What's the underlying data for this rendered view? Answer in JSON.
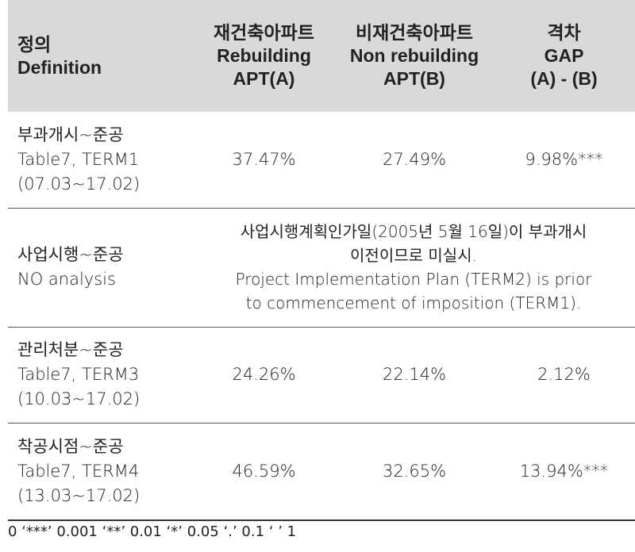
{
  "header": {
    "definition": [
      "정의",
      "Definition"
    ],
    "col_a": [
      "재건축아파트",
      "Rebuilding",
      "APT(A)"
    ],
    "col_b": [
      "비재건축아파트",
      "Non rebuilding",
      "APT(B)"
    ],
    "col_gap": [
      "격차",
      "GAP",
      "(A) - (B)"
    ]
  },
  "rows": [
    {
      "definition": [
        "부과개시~준공",
        "Table7, TERM1",
        "(07.03~17.02)"
      ],
      "a": "37.47%",
      "b": "27.49%",
      "gap": "9.98%***"
    },
    {
      "definition": [
        "사업시행~준공",
        "NO analysis"
      ],
      "note": [
        "사업시행계획인가일(2005년 5월 16일)이 부과개시",
        "이전이므로 미실시.",
        "Project Implementation Plan (TERM2) is prior",
        "to commencement of imposition (TERM1)."
      ]
    },
    {
      "definition": [
        "관리처분~준공",
        "Table7, TERM3",
        "(10.03~17.02)"
      ],
      "a": "24.26%",
      "b": "22.14%",
      "gap": "2.12%"
    },
    {
      "definition": [
        "착공시점~준공",
        "Table7, TERM4",
        "(13.03~17.02)"
      ],
      "a": "46.59%",
      "b": "32.65%",
      "gap": "13.94%***"
    }
  ],
  "footnote": "0 ‘***’ 0.001 ‘**’ 0.01 ‘*’ 0.05 ‘.’ 0.1 ‘ ’ 1"
}
